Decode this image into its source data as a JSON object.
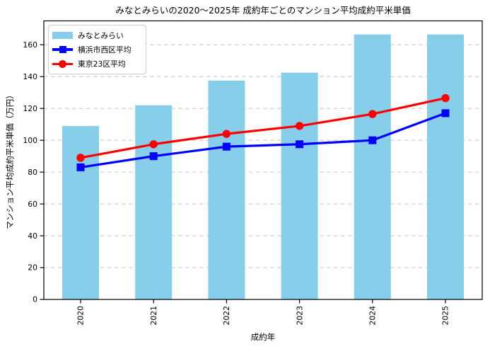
{
  "title": "みなとみらいの2020〜2025年 成約年ごとのマンション平均成約平米単価",
  "colors": {
    "background": "#ffffff",
    "grid": "#c9c9c9",
    "axis": "#000000",
    "bar": "#87CEEB",
    "line_yokohama_nishi": "#0000FF",
    "line_tokyo23": "#FF0000",
    "legend_border": "#cccccc"
  },
  "legend": {
    "position": "upper-left",
    "items": [
      {
        "label": "みなとみらい",
        "handle": "bar-swatch"
      },
      {
        "label": "横浜市西区平均",
        "handle": "line-square-marker"
      },
      {
        "label": "東京23区平均",
        "handle": "line-circle-marker"
      }
    ]
  },
  "chart_data": {
    "type": "bar+line",
    "title": "みなとみらいの2020〜2025年 成約年ごとのマンション平均成約平米単価",
    "xlabel": "成約年",
    "ylabel": "マンション平均成約平米単価（万円）",
    "categories": [
      "2020",
      "2021",
      "2022",
      "2023",
      "2024",
      "2025"
    ],
    "series": [
      {
        "name": "みなとみらい",
        "type": "bar",
        "color": "#87CEEB",
        "values": [
          109,
          122,
          137.5,
          142.5,
          166.5,
          166.5
        ]
      },
      {
        "name": "横浜市西区平均",
        "type": "line",
        "marker": "square",
        "color": "#0000FF",
        "values": [
          83,
          90,
          96,
          97.5,
          100,
          117
        ]
      },
      {
        "name": "東京23区平均",
        "type": "line",
        "marker": "circle",
        "color": "#FF0000",
        "values": [
          89,
          97.5,
          104,
          109,
          116.5,
          126.5
        ]
      }
    ],
    "ylim": [
      0,
      175
    ],
    "yticks": [
      0,
      20,
      40,
      60,
      80,
      100,
      120,
      140,
      160
    ],
    "grid": "horizontal-dashed",
    "x_tick_rotation": 90,
    "legend_position": "upper-left"
  }
}
